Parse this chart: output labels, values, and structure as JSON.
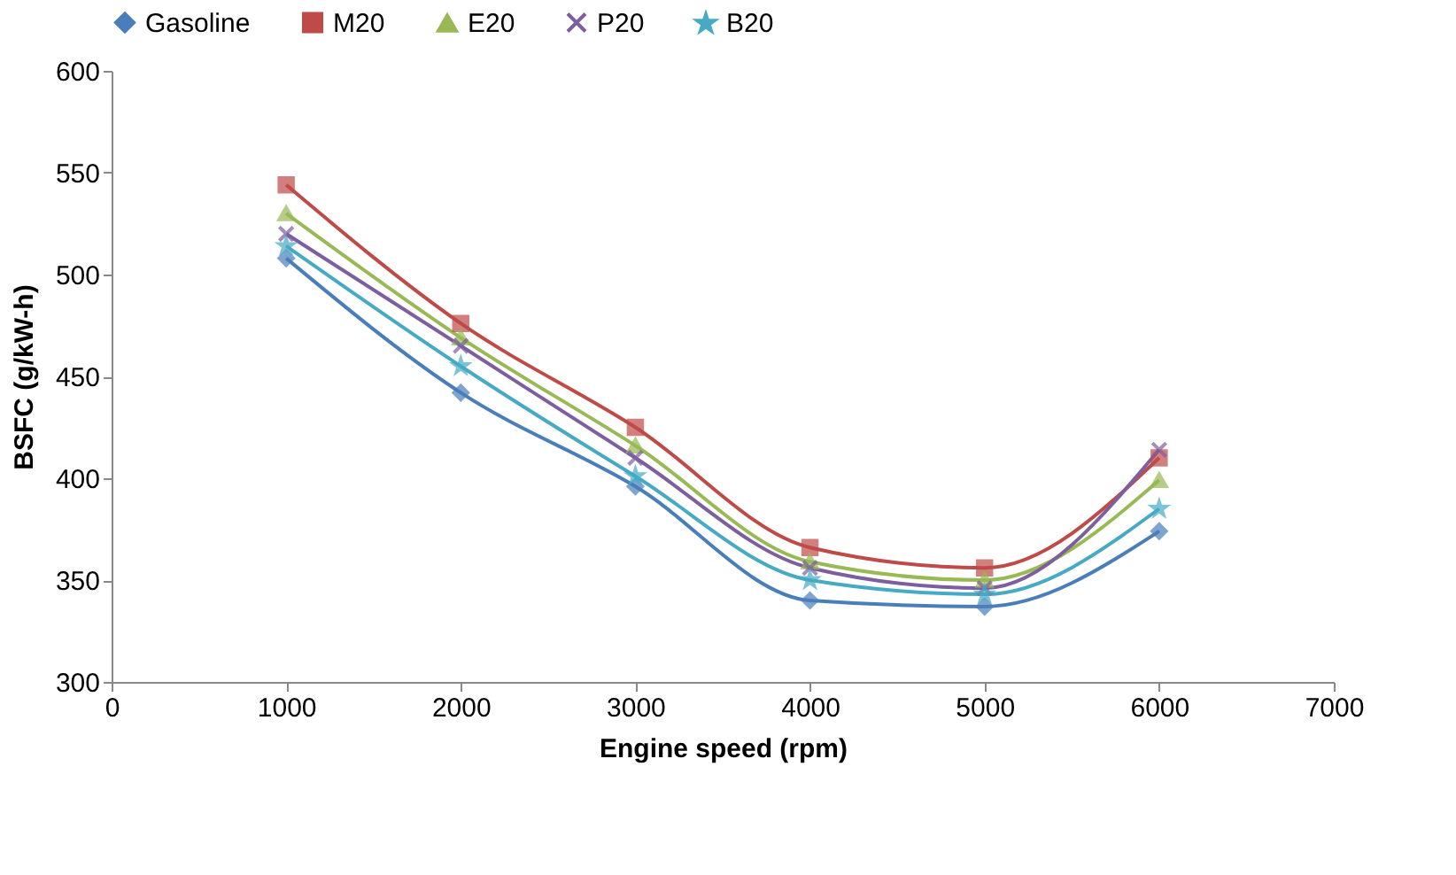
{
  "chart_data": {
    "type": "line",
    "xlabel": "Engine speed (rpm)",
    "ylabel": "BSFC (g/kW-h)",
    "x": [
      1000,
      2000,
      3000,
      4000,
      5000,
      6000
    ],
    "xlim": [
      0,
      7000
    ],
    "xticks": [
      0,
      1000,
      2000,
      3000,
      4000,
      5000,
      6000,
      7000
    ],
    "ylim": [
      300,
      600
    ],
    "yticks": [
      300,
      350,
      400,
      450,
      500,
      550,
      600
    ],
    "grid": false,
    "legend": "top",
    "line_style": "solid",
    "series": [
      {
        "name": "Gasoline",
        "color": "#4a7ebb",
        "marker": "diamond",
        "values": [
          508,
          442,
          396,
          340,
          337,
          374
        ]
      },
      {
        "name": "M20",
        "color": "#be4b48",
        "marker": "square",
        "values": [
          544,
          476,
          425,
          366,
          356,
          410
        ]
      },
      {
        "name": "E20",
        "color": "#98b954",
        "marker": "triangle",
        "values": [
          530,
          469,
          416,
          359,
          350,
          399
        ]
      },
      {
        "name": "P20",
        "color": "#7d5fa0",
        "marker": "cross",
        "values": [
          520,
          465,
          410,
          356,
          346,
          414
        ]
      },
      {
        "name": "B20",
        "color": "#46aac5",
        "marker": "star",
        "values": [
          514,
          455,
          401,
          350,
          343,
          385
        ]
      }
    ]
  }
}
